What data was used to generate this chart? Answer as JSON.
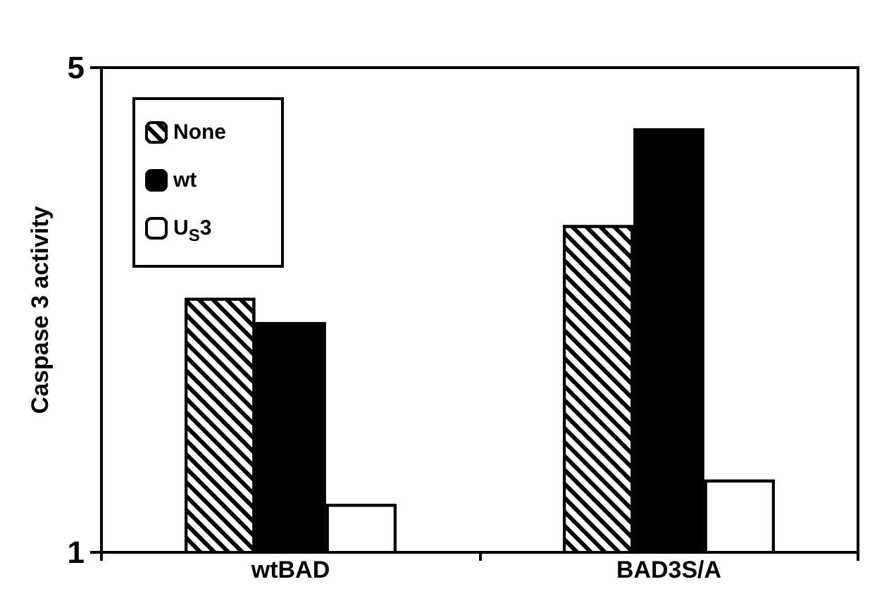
{
  "chart_data": {
    "type": "bar",
    "ylabel": "Caspase 3 activity",
    "categories": [
      "wtBAD",
      "BAD3S/A"
    ],
    "series": [
      {
        "name": "None",
        "color": "#ffffff",
        "values": [
          3.1,
          3.7
        ]
      },
      {
        "name": "wt",
        "color": "#000000",
        "values": [
          2.9,
          4.5
        ]
      },
      {
        "name": "U$_{S}$3",
        "color": "#ffffff",
        "values": [
          1.4,
          1.6
        ]
      }
    ],
    "ylim": [
      1,
      5
    ],
    "yticks": [
      1,
      5
    ],
    "grid": false,
    "legend": "top left"
  }
}
